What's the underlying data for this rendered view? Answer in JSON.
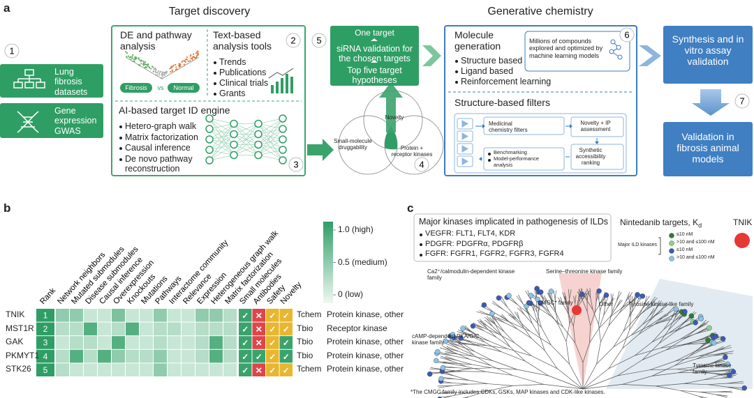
{
  "panel_labels": [
    "a",
    "b",
    "c"
  ],
  "steps": [
    "1",
    "2",
    "3",
    "4",
    "5",
    "6",
    "7"
  ],
  "a": {
    "target_discovery": "Target discovery",
    "generative_chemistry": "Generative chemistry",
    "datasets": [
      "Lung fibrosis datasets",
      "Gene expression GWAS"
    ],
    "de_title": "DE and pathway analysis",
    "de_groups": [
      "Fibrosis",
      "vs",
      "Normal"
    ],
    "text_title": "Text-based analysis tools",
    "text_items": [
      "Trends",
      "Publications",
      "Clinical trials",
      "Grants"
    ],
    "ai_title": "AI-based target ID engine",
    "ai_items": [
      "Hetero-graph walk",
      "Matrix factorization",
      "Causal inference",
      "De novo pathway reconstruction"
    ],
    "venn": [
      "Novelty",
      "Small-molecule druggability",
      "Protein + receptor kinases"
    ],
    "validation": [
      "One target",
      "siRNA validation for the chosen targets",
      "Top five target hypotheses"
    ],
    "mol_title": "Molecule generation",
    "mol_items": [
      "Structure based",
      "Ligand based",
      "Reinforcement learning"
    ],
    "mol_note": "Millions of compounds explored and optimized by machine learning models",
    "filters_title": "Structure-based filters",
    "filters": [
      "Medicinal chemistry filters",
      "Novelty + IP assessment",
      "Synthetic accessibility ranking"
    ],
    "bench": [
      "Benchmarking",
      "Model-performance analysis"
    ],
    "synthesis": "Synthesis and in vitro assay validation",
    "animal": "Validation in fibrosis animal models"
  },
  "b": {
    "columns": [
      "Rank",
      "Network neighbors",
      "Mutated submodules",
      "Disease submodules",
      "Causal inference",
      "Overexpression",
      "Knockouts",
      "Mutations",
      "Pathways",
      "Interactome community",
      "Relevance",
      "Expression",
      "Heterogeneous graph walk",
      "Matrix factorization",
      "Small molecules",
      "Antibodies",
      "Safety",
      "Novelty"
    ],
    "genes": [
      "TNIK",
      "MST1R",
      "GAK",
      "PKMYT1",
      "STK26"
    ],
    "ranks": [
      1,
      2,
      3,
      4,
      5
    ],
    "heatmap": [
      [
        0.5,
        0.5,
        0.2,
        0.2,
        0.6,
        0.2,
        0.2,
        0.5,
        0.2,
        0.2,
        0.5,
        0.5,
        0.3
      ],
      [
        0.3,
        0.3,
        0.8,
        0.2,
        0.3,
        0.8,
        0.2,
        0.3,
        0.3,
        0.2,
        0.3,
        0.3,
        0.3
      ],
      [
        0.2,
        0.3,
        0.3,
        0.2,
        0.8,
        0.2,
        0.2,
        0.3,
        0.2,
        0.2,
        0.3,
        0.8,
        0.3
      ],
      [
        0.3,
        0.8,
        0.3,
        0.8,
        0.5,
        0.3,
        0.3,
        0.5,
        0.2,
        0.2,
        0.3,
        0.8,
        0.3
      ],
      [
        0.3,
        0.2,
        0.2,
        0.2,
        0.2,
        0.2,
        0.2,
        0.5,
        0.2,
        0.2,
        0.2,
        0.2,
        0.2
      ]
    ],
    "tractability": [
      [
        "✓",
        "✕",
        "✓",
        "✓"
      ],
      [
        "✓",
        "✕",
        "✓",
        "✓"
      ],
      [
        "✓",
        "✕",
        "✓",
        "✓"
      ],
      [
        "✓",
        "✓",
        "✓",
        "✓"
      ],
      [
        "✓",
        "✕",
        "✓",
        "✓"
      ]
    ],
    "tractability_colors": [
      [
        "#3aa36b",
        "#e0454a",
        "#e9b62f",
        "#e9b62f"
      ],
      [
        "#3aa36b",
        "#e0454a",
        "#e9b62f",
        "#e9b62f"
      ],
      [
        "#3aa36b",
        "#e0454a",
        "#e9b62f",
        "#3aa36b"
      ],
      [
        "#3aa36b",
        "#3aa36b",
        "#e9b62f",
        "#3aa36b"
      ],
      [
        "#3aa36b",
        "#e0454a",
        "#e9b62f",
        "#e9b62f"
      ]
    ],
    "tdl": [
      "Tchem",
      "Tbio",
      "Tbio",
      "Tbio",
      "Tchem"
    ],
    "families": [
      "Protein kinase, other",
      "Receptor kinase",
      "Protein kinase, other",
      "Protein kinase, other",
      "Protein kinase, other"
    ],
    "colorbar": {
      "ticks": [
        {
          "value": 1.0,
          "label": "1.0 (high)"
        },
        {
          "value": 0.5,
          "label": "0.5 (medium)"
        },
        {
          "value": 0,
          "label": "0 (low)"
        }
      ],
      "colors": [
        "#eef8f2",
        "#2f9e65"
      ]
    }
  },
  "c": {
    "box_title": "Major kinases implicated in pathogenesis of ILDs",
    "box_items": [
      "VEGFR: FLT1, FLT4, KDR",
      "PDGFR: PDGFRα, PDGFRβ",
      "FGFR: FGFR1, FGFR2, FGFR3, FGFR4"
    ],
    "legend_title": "Nintedanib targets, K",
    "legend_sub": "d",
    "legend_group": "Major ILD kinases",
    "legend_items": [
      {
        "label": "≤10 nM",
        "color": "#2e7d32"
      },
      {
        "label": ">10 and ≤100 nM",
        "color": "#8fd18f"
      },
      {
        "label": "≤10 nM",
        "color": "#3b5bb5"
      },
      {
        "label": ">10 and ≤100 nM",
        "color": "#8cc4e8"
      }
    ],
    "tnik": "TNIK",
    "tnik_color": "#e53935",
    "families": [
      "Ca2⁺/calmodulin-dependent kinase family",
      "Serine–threonine kinase family",
      "CMGC* family",
      "Other",
      "Tyrosine kinase-like family",
      "cAMP-dependent PKA/G/C kinase family",
      "Tyrosine kinase family"
    ],
    "footnote": "*The CMGC family includes CDKs, GSKs, MAP kinases and CDK-like kinases."
  }
}
